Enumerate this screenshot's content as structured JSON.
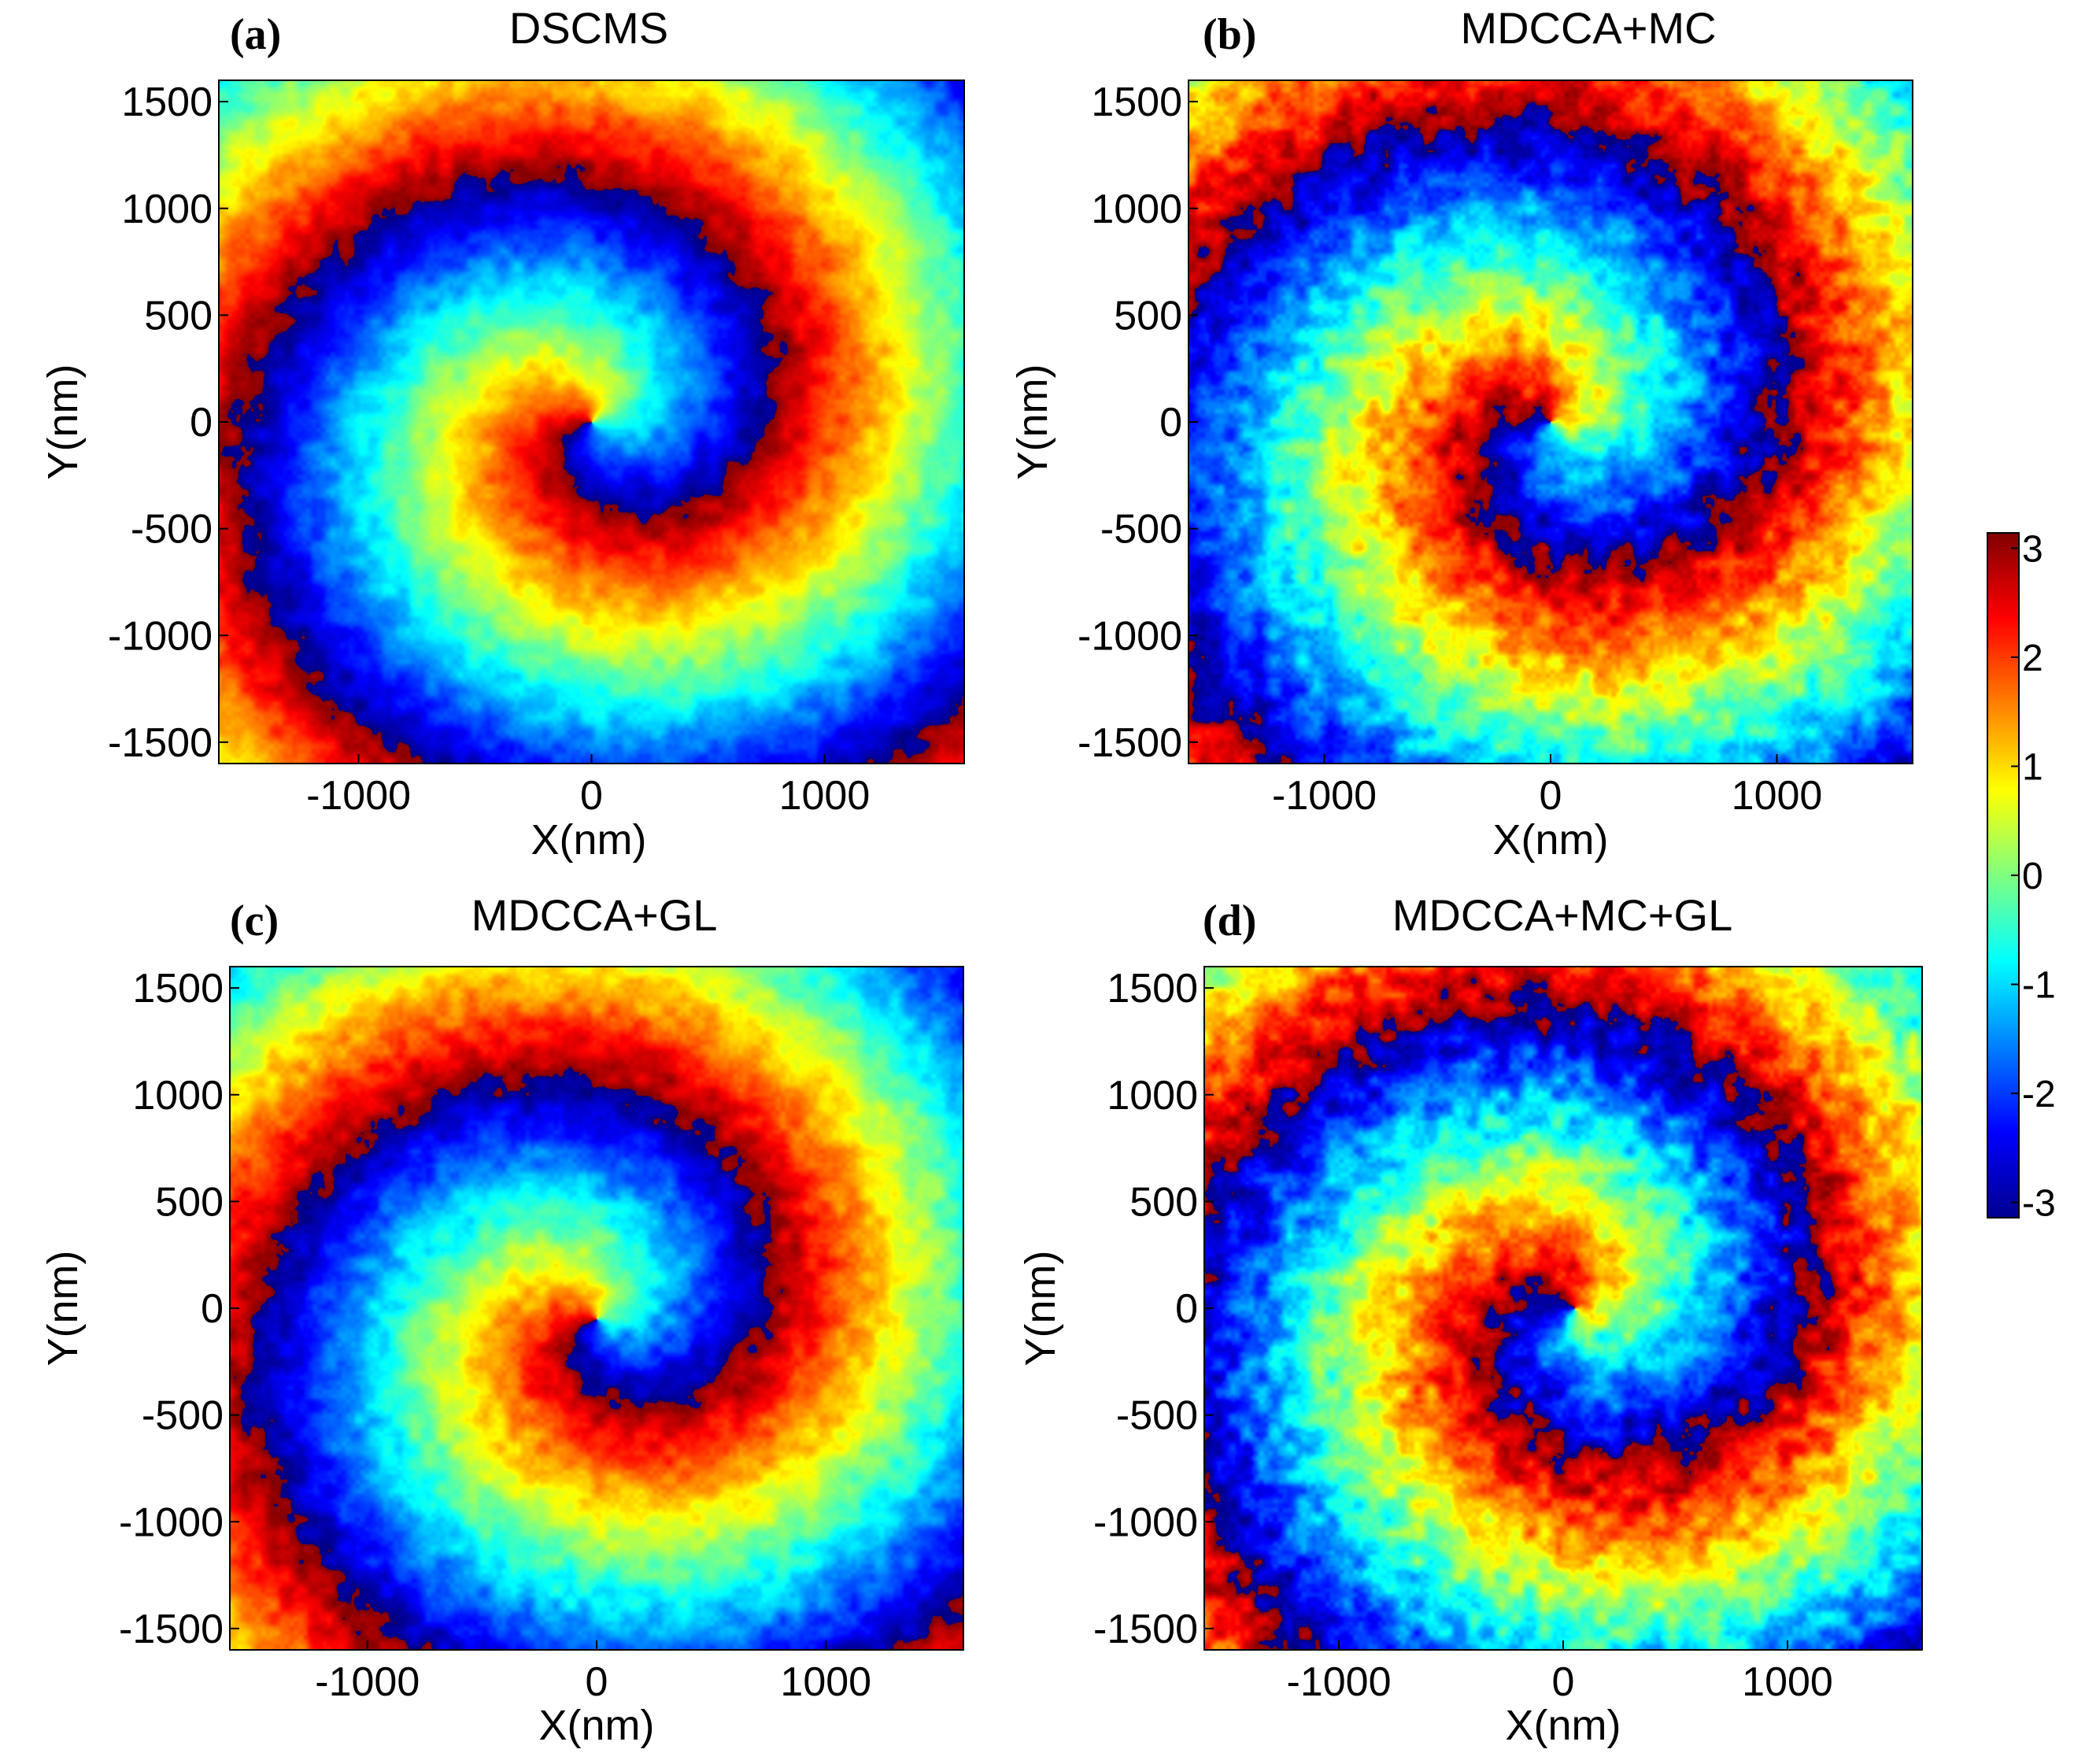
{
  "chart_data": [
    {
      "type": "heatmap",
      "panel_label": "(a)",
      "title": "DSCMS",
      "xlabel": "X(nm)",
      "ylabel": "Y(nm)",
      "xlim": [
        -1600,
        1600
      ],
      "ylim": [
        -1600,
        1600
      ],
      "x_ticks": [
        -1000,
        0,
        1000
      ],
      "y_ticks": [
        1500,
        1000,
        500,
        0,
        -500,
        -1000,
        -1500
      ],
      "pattern": {
        "center": [
          0,
          0
        ],
        "phase_offset": 0.0,
        "spiral_rate": 4.2,
        "noise": 0.3
      }
    },
    {
      "type": "heatmap",
      "panel_label": "(b)",
      "title": "MDCCA+MC",
      "xlabel": "X(nm)",
      "ylabel": "Y(nm)",
      "xlim": [
        -1600,
        1600
      ],
      "ylim": [
        -1600,
        1600
      ],
      "x_ticks": [
        -1000,
        0,
        1000
      ],
      "y_ticks": [
        1500,
        1000,
        500,
        0,
        -500,
        -1000,
        -1500
      ],
      "pattern": {
        "center": [
          0,
          0
        ],
        "phase_offset": 0.9,
        "spiral_rate": 4.0,
        "noise": 0.55
      }
    },
    {
      "type": "heatmap",
      "panel_label": "(c)",
      "title": "MDCCA+GL",
      "xlabel": "X(nm)",
      "ylabel": "Y(nm)",
      "xlim": [
        -1600,
        1600
      ],
      "ylim": [
        -1600,
        1600
      ],
      "x_ticks": [
        -1000,
        0,
        1000
      ],
      "y_ticks": [
        1500,
        1000,
        500,
        0,
        -500,
        -1000,
        -1500
      ],
      "pattern": {
        "center": [
          0,
          -50
        ],
        "phase_offset": -0.2,
        "spiral_rate": 4.1,
        "noise": 0.35
      }
    },
    {
      "type": "heatmap",
      "panel_label": "(d)",
      "title": "MDCCA+MC+GL",
      "xlabel": "X(nm)",
      "ylabel": "Y(nm)",
      "xlim": [
        -1600,
        1600
      ],
      "ylim": [
        -1600,
        1600
      ],
      "x_ticks": [
        -1000,
        0,
        1000
      ],
      "y_ticks": [
        1500,
        1000,
        500,
        0,
        -500,
        -1000,
        -1500
      ],
      "pattern": {
        "center": [
          50,
          0
        ],
        "phase_offset": 1.3,
        "spiral_rate": 4.3,
        "noise": 0.6
      }
    }
  ],
  "colorbar": {
    "min": -3.14,
    "max": 3.14,
    "ticks": [
      3,
      2,
      1,
      0,
      -1,
      -2,
      -3
    ],
    "colormap": "jet",
    "colors": [
      "#00008f",
      "#0000ff",
      "#00ffff",
      "#80ff80",
      "#ffff00",
      "#ff0000",
      "#800000"
    ]
  }
}
